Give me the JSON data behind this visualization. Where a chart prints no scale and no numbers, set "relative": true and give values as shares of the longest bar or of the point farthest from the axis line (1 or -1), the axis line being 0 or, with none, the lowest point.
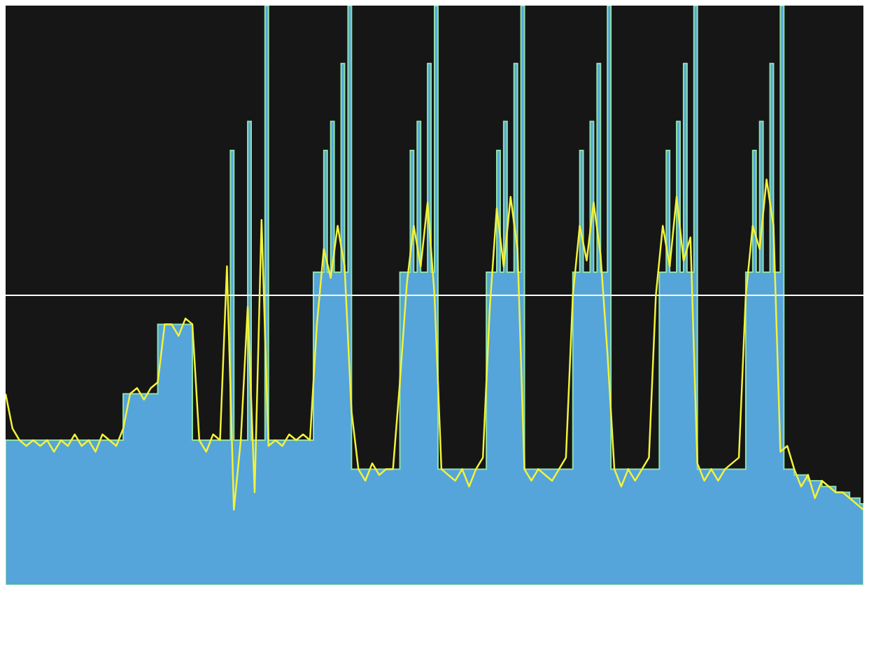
{
  "chart_data": {
    "type": "area",
    "relative": true,
    "categories": [
      null,
      null,
      null,
      null,
      null,
      null,
      null,
      null,
      null,
      null,
      null,
      null,
      null,
      null,
      null,
      null,
      null,
      null,
      null,
      null,
      null,
      null,
      null,
      null,
      null,
      null,
      null,
      null,
      null,
      null,
      null,
      null,
      null,
      null,
      null,
      null,
      null,
      null,
      null,
      null,
      null,
      null,
      null,
      null,
      null,
      null,
      null,
      null,
      null,
      null,
      null,
      null,
      null,
      null,
      null,
      null,
      null,
      null,
      null,
      null,
      null,
      null,
      null,
      null,
      null,
      null,
      null,
      null,
      null,
      null,
      null,
      null,
      null,
      null,
      null,
      null,
      null,
      null,
      null,
      null,
      null,
      null,
      null,
      null,
      null,
      null,
      null,
      null,
      null,
      null,
      null,
      null,
      null,
      null,
      null,
      null,
      null,
      null,
      null,
      null,
      null,
      null,
      null,
      null,
      null,
      null,
      null,
      null,
      null,
      null,
      null,
      null,
      null,
      null,
      null,
      null,
      null,
      null,
      null,
      null,
      null,
      null,
      null,
      null,
      null,
      null,
      null,
      null,
      null,
      null,
      null,
      null,
      null,
      null,
      null,
      null,
      null,
      null,
      null,
      null,
      null,
      null,
      null,
      null,
      null,
      null,
      null,
      null,
      null,
      null,
      null,
      null,
      null,
      null,
      null,
      null,
      null,
      null,
      null,
      null,
      null,
      null,
      null,
      null,
      null,
      null,
      null,
      null,
      null,
      null,
      null,
      null,
      null,
      null,
      null,
      null,
      null,
      null,
      null,
      null,
      null,
      null,
      null,
      null,
      null,
      null,
      null,
      null,
      null,
      null,
      null,
      null,
      null,
      null,
      null,
      null,
      null,
      null,
      null,
      null,
      null,
      null,
      null,
      null,
      null,
      null,
      null,
      null,
      null,
      null,
      null,
      null,
      null,
      null,
      null,
      null,
      null,
      null,
      null,
      null,
      null,
      null,
      null,
      null,
      null,
      null,
      null,
      null,
      null,
      null,
      null,
      null,
      null,
      null,
      null,
      null,
      null,
      null,
      null,
      null,
      null,
      null,
      null,
      null,
      null,
      null,
      null,
      null,
      null
    ],
    "series": [
      {
        "color": "#55a4da",
        "values": [
          0.25,
          0.25,
          0.25,
          0.25,
          0.25,
          0.25,
          0.25,
          0.25,
          0.25,
          0.25,
          0.25,
          0.25,
          0.25,
          0.25,
          0.25,
          0.25,
          0.25,
          0.25,
          0.25,
          0.25,
          0.25,
          0.25,
          0.25,
          0.25,
          0.25,
          0.25,
          0.25,
          0.25,
          0.25,
          0.25,
          0.25,
          0.25,
          0.25,
          0.25,
          0.33,
          0.33,
          0.33,
          0.33,
          0.33,
          0.33,
          0.33,
          0.33,
          0.33,
          0.33,
          0.45,
          0.45,
          0.45,
          0.45,
          0.45,
          0.45,
          0.45,
          0.45,
          0.45,
          0.45,
          0.25,
          0.25,
          0.25,
          0.25,
          0.25,
          0.25,
          0.25,
          0.25,
          0.25,
          0.25,
          0.25,
          0.75,
          0.25,
          0.25,
          0.25,
          0.25,
          0.8,
          0.25,
          0.25,
          0.25,
          0.25,
          1,
          0.25,
          0.25,
          0.25,
          0.25,
          0.25,
          0.25,
          0.25,
          0.25,
          0.25,
          0.25,
          0.25,
          0.25,
          0.25,
          0.54,
          0.54,
          0.54,
          0.75,
          0.54,
          0.8,
          0.54,
          0.54,
          0.9,
          0.54,
          1,
          0.2,
          0.2,
          0.2,
          0.2,
          0.2,
          0.2,
          0.2,
          0.2,
          0.2,
          0.2,
          0.2,
          0.2,
          0.2,
          0.2,
          0.54,
          0.54,
          0.54,
          0.75,
          0.54,
          0.8,
          0.54,
          0.54,
          0.9,
          0.54,
          1,
          0.2,
          0.2,
          0.2,
          0.2,
          0.2,
          0.2,
          0.2,
          0.2,
          0.2,
          0.2,
          0.2,
          0.2,
          0.2,
          0.2,
          0.54,
          0.54,
          0.54,
          0.75,
          0.54,
          0.8,
          0.54,
          0.54,
          0.9,
          0.54,
          1,
          0.2,
          0.2,
          0.2,
          0.2,
          0.2,
          0.2,
          0.2,
          0.2,
          0.2,
          0.2,
          0.2,
          0.2,
          0.2,
          0.2,
          0.54,
          0.54,
          0.75,
          0.54,
          0.54,
          0.8,
          0.54,
          0.9,
          0.54,
          0.54,
          1,
          0.2,
          0.2,
          0.2,
          0.2,
          0.2,
          0.2,
          0.2,
          0.2,
          0.2,
          0.2,
          0.2,
          0.2,
          0.2,
          0.2,
          0.54,
          0.54,
          0.75,
          0.54,
          0.54,
          0.8,
          0.54,
          0.9,
          0.54,
          0.54,
          1,
          0.2,
          0.2,
          0.2,
          0.2,
          0.2,
          0.2,
          0.2,
          0.2,
          0.2,
          0.2,
          0.2,
          0.2,
          0.2,
          0.2,
          0.54,
          0.54,
          0.75,
          0.54,
          0.8,
          0.54,
          0.54,
          0.9,
          0.54,
          0.54,
          1,
          0.2,
          0.2,
          0.2,
          0.19,
          0.19,
          0.19,
          0.19,
          0.18,
          0.18,
          0.18,
          0.18,
          0.17,
          0.17,
          0.17,
          0.17,
          0.16,
          0.16,
          0.16,
          0.16,
          0.15,
          0.15,
          0.15,
          0.14,
          0.14
        ]
      },
      {
        "type": "line",
        "color": "#f2f23a",
        "values": [
          0.33,
          null,
          0.27,
          null,
          0.25,
          null,
          0.24,
          null,
          0.25,
          null,
          0.24,
          null,
          0.25,
          null,
          0.23,
          null,
          0.25,
          null,
          0.24,
          null,
          0.26,
          null,
          0.24,
          null,
          0.25,
          null,
          0.23,
          null,
          0.26,
          null,
          0.25,
          null,
          0.24,
          null,
          0.27,
          null,
          0.33,
          null,
          0.34,
          null,
          0.32,
          null,
          0.34,
          null,
          0.35,
          null,
          0.45,
          null,
          0.45,
          null,
          0.43,
          null,
          0.46,
          null,
          0.45,
          null,
          0.25,
          null,
          0.23,
          null,
          0.26,
          null,
          0.25,
          null,
          0.55,
          null,
          0.13,
          null,
          0.25,
          null,
          0.48,
          null,
          0.16,
          null,
          0.63,
          null,
          0.24,
          null,
          0.25,
          null,
          0.24,
          null,
          0.26,
          null,
          0.25,
          null,
          0.26,
          null,
          0.25,
          null,
          0.45,
          null,
          0.58,
          null,
          0.53,
          null,
          0.62,
          null,
          0.55,
          null,
          0.3,
          null,
          0.2,
          null,
          0.18,
          null,
          0.21,
          null,
          0.19,
          null,
          0.2,
          null,
          0.2,
          null,
          0.35,
          null,
          0.52,
          null,
          0.62,
          null,
          0.55,
          null,
          0.66,
          null,
          0.5,
          null,
          0.2,
          null,
          0.19,
          null,
          0.18,
          null,
          0.2,
          null,
          0.17,
          null,
          0.2,
          null,
          0.22,
          null,
          0.48,
          null,
          0.65,
          null,
          0.55,
          null,
          0.67,
          null,
          0.58,
          null,
          0.2,
          null,
          0.18,
          null,
          0.2,
          null,
          0.19,
          null,
          0.18,
          null,
          0.2,
          null,
          0.22,
          null,
          0.5,
          null,
          0.62,
          null,
          0.56,
          null,
          0.66,
          null,
          0.57,
          null,
          0.4,
          null,
          0.2,
          null,
          0.17,
          null,
          0.2,
          null,
          0.18,
          null,
          0.2,
          null,
          0.22,
          null,
          0.5,
          null,
          0.62,
          null,
          0.55,
          null,
          0.67,
          null,
          0.56,
          null,
          0.6,
          null,
          0.21,
          null,
          0.18,
          null,
          0.2,
          null,
          0.18,
          null,
          0.2,
          null,
          0.21,
          null,
          0.22,
          null,
          0.5,
          null,
          0.62,
          null,
          0.58,
          null,
          0.7,
          null,
          0.62,
          null,
          0.23,
          null,
          0.24,
          null,
          0.2,
          null,
          0.17,
          null,
          0.19,
          null,
          0.15,
          null,
          0.18,
          null,
          0.17,
          null,
          0.16,
          null,
          0.16,
          null,
          0.15,
          null,
          0.14,
          null,
          0.13
        ]
      }
    ],
    "ref_lines": [
      {
        "axis": "y",
        "value": 0.5,
        "color": "#ffffff"
      }
    ]
  }
}
